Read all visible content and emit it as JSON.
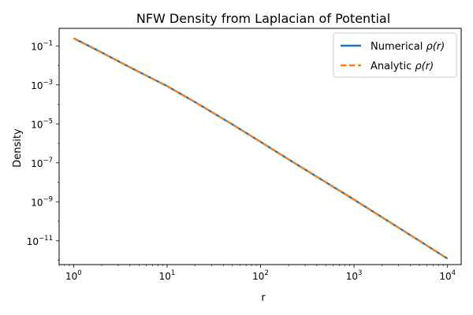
{
  "chart_data": {
    "type": "line",
    "title": "NFW Density from Laplacian of Potential",
    "xlabel": "r",
    "ylabel": "Density",
    "xscale": "log",
    "yscale": "log",
    "xlim": [
      0.7,
      14000
    ],
    "ylim": [
      6e-13,
      0.8
    ],
    "x_ticks": [
      {
        "value": 1,
        "base": "10",
        "exp": "0"
      },
      {
        "value": 10,
        "base": "10",
        "exp": "1"
      },
      {
        "value": 100,
        "base": "10",
        "exp": "2"
      },
      {
        "value": 1000,
        "base": "10",
        "exp": "3"
      },
      {
        "value": 10000,
        "base": "10",
        "exp": "4"
      }
    ],
    "y_ticks": [
      {
        "value": 0.1,
        "base": "10",
        "exp": "−1"
      },
      {
        "value": 0.001,
        "base": "10",
        "exp": "−3"
      },
      {
        "value": 1e-05,
        "base": "10",
        "exp": "−5"
      },
      {
        "value": 1e-07,
        "base": "10",
        "exp": "−7"
      },
      {
        "value": 1e-09,
        "base": "10",
        "exp": "−9"
      },
      {
        "value": 1e-11,
        "base": "10",
        "exp": "−11"
      }
    ],
    "grid": false,
    "legend_position": "upper right",
    "x": [
      1,
      2,
      4,
      10,
      20,
      50,
      100,
      200,
      500,
      1000,
      2000,
      5000,
      10000
    ],
    "series": [
      {
        "name": "Numerical ρ(r)",
        "legend_name": "Numerical ",
        "legend_math": "ρ(r)",
        "color": "#1f77b4",
        "style": "solid",
        "values": [
          0.25,
          0.046,
          0.008,
          0.00087,
          0.00013,
          9.4e-06,
          1.2e-06,
          1.5e-07,
          1e-08,
          1.3e-09,
          1.6e-10,
          1e-11,
          1.2e-12
        ]
      },
      {
        "name": "Analytic ρ(r)",
        "legend_name": "Analytic ",
        "legend_math": "ρ(r)",
        "color": "#ff7f0e",
        "style": "dashed",
        "values": [
          0.25,
          0.046,
          0.008,
          0.00087,
          0.00013,
          9.4e-06,
          1.2e-06,
          1.5e-07,
          1e-08,
          1.3e-09,
          1.6e-10,
          1e-11,
          1.2e-12
        ]
      }
    ]
  }
}
